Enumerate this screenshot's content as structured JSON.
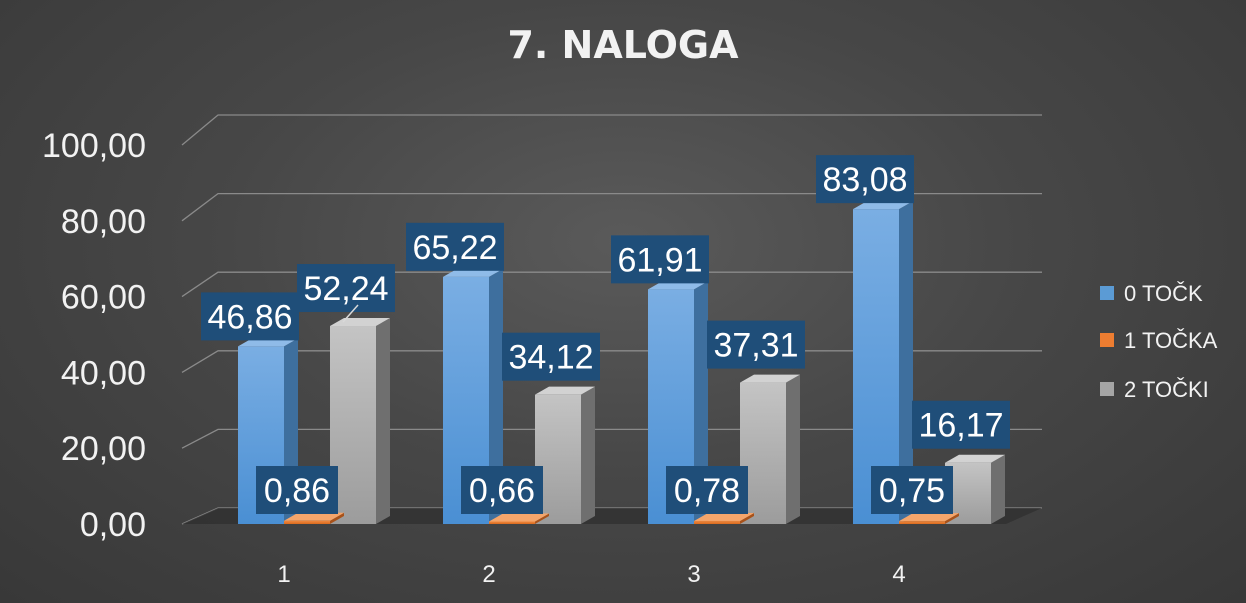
{
  "chart_data": {
    "type": "bar",
    "title": "7. NALOGA",
    "categories": [
      "1",
      "2",
      "3",
      "4"
    ],
    "series": [
      {
        "name": "0 TOČK",
        "values": [
          46.86,
          65.22,
          61.91,
          83.08
        ],
        "labels": [
          "46,86",
          "65,22",
          "61,91",
          "83,08"
        ],
        "color": "#5b9bd5"
      },
      {
        "name": "1 TOČKA",
        "values": [
          0.86,
          0.66,
          0.78,
          0.75
        ],
        "labels": [
          "0,86",
          "0,66",
          "0,78",
          "0,75"
        ],
        "color": "#ed7d31"
      },
      {
        "name": "2 TOČKI",
        "values": [
          52.24,
          34.12,
          37.31,
          16.17
        ],
        "labels": [
          "52,24",
          "34,12",
          "37,31",
          "16,17"
        ],
        "color": "#a5a5a5"
      }
    ],
    "yticks": [
      "0,00",
      "20,00",
      "40,00",
      "60,00",
      "80,00",
      "100,00"
    ],
    "ylim": [
      0,
      100
    ],
    "grid": true,
    "legend_position": "right",
    "style": "3d-column",
    "label_background": "#1f4e79"
  }
}
